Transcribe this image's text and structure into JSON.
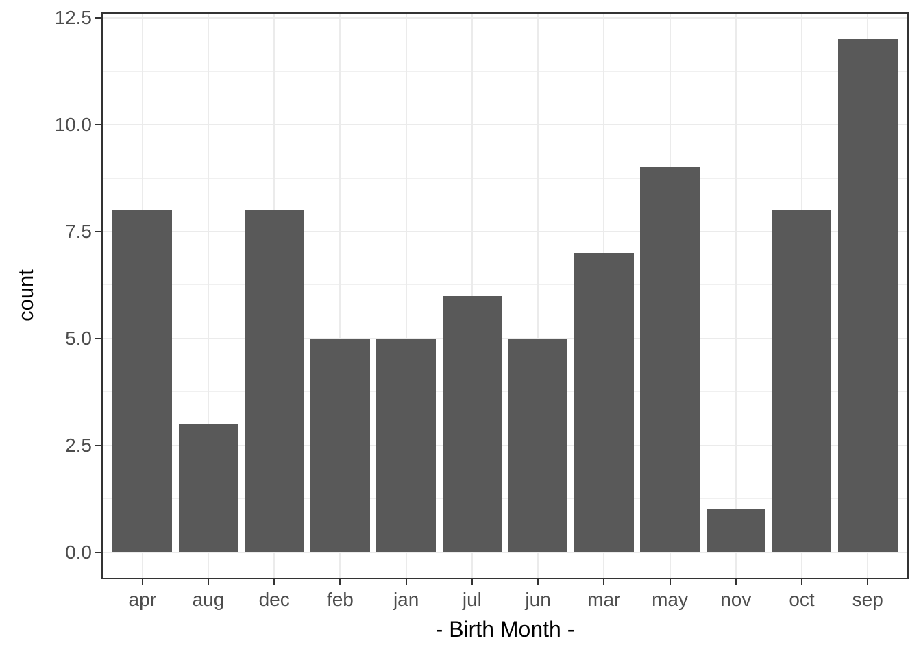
{
  "chart_data": {
    "type": "bar",
    "title": "",
    "xlabel": "- Birth Month -",
    "ylabel": "count",
    "categories": [
      "apr",
      "aug",
      "dec",
      "feb",
      "jan",
      "jul",
      "jun",
      "mar",
      "may",
      "nov",
      "oct",
      "sep"
    ],
    "values": [
      8,
      3,
      8,
      5,
      5,
      6,
      5,
      7,
      9,
      1,
      8,
      12
    ],
    "y_tick_labels": [
      "0.0",
      "2.5",
      "5.0",
      "7.5",
      "10.0",
      "12.5"
    ],
    "y_tick_values": [
      0,
      2.5,
      5,
      7.5,
      10,
      12.5
    ],
    "y_minor_tick_values": [
      1.25,
      3.75,
      6.25,
      8.75,
      11.25
    ],
    "ylim": [
      -0.6,
      12.6
    ],
    "xlim_band": [
      0.4,
      12.6
    ],
    "bar_rel_width": 0.9,
    "grid": "horizontal major+minor, vertical major at category centers",
    "legend": "none",
    "colors": {
      "bar_fill": "#595959",
      "panel_border": "#333333",
      "grid_major": "#EBEBEB",
      "grid_minor": "#F0F0F0",
      "tick_mark": "#333333",
      "tick_label": "#4D4D4D",
      "axis_title": "#000000",
      "background": "#FFFFFF"
    }
  }
}
